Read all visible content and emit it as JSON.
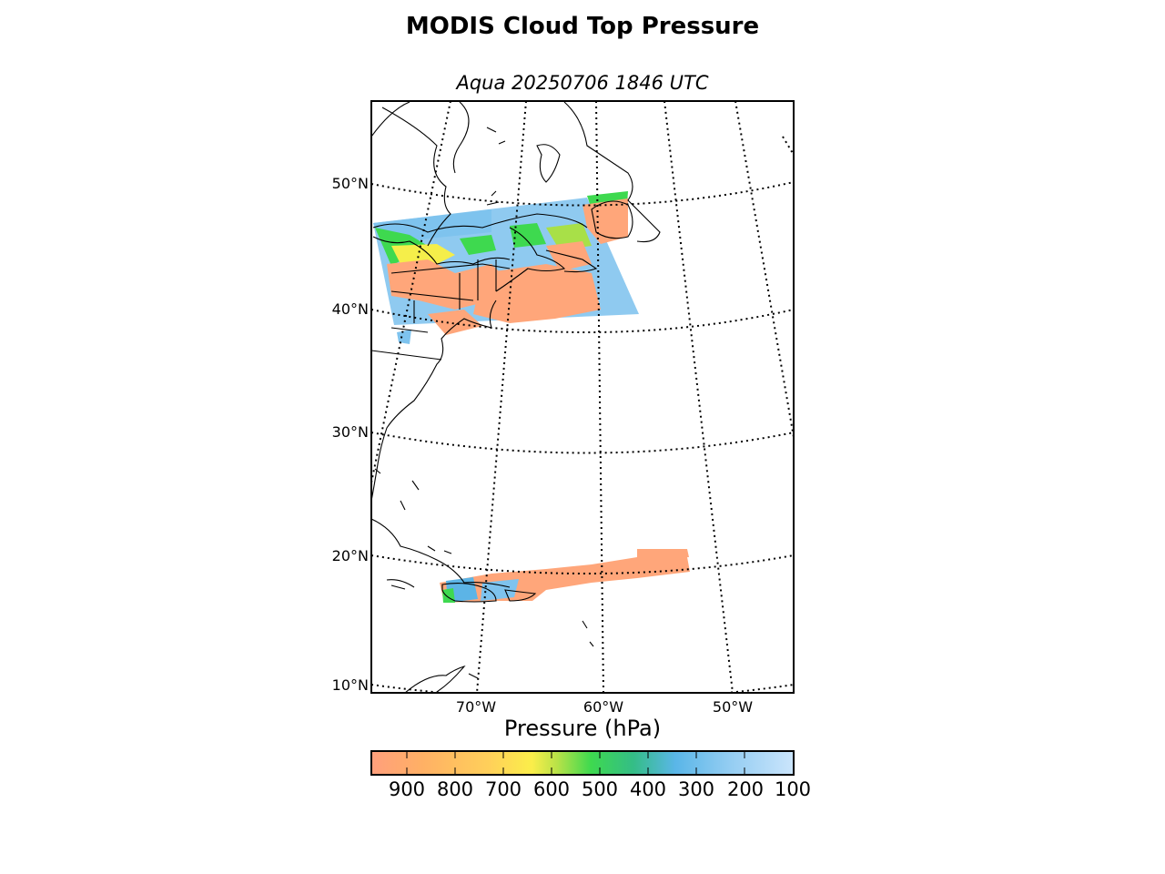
{
  "title": "MODIS Cloud Top Pressure",
  "subtitle": "Aqua 20250706 1846 UTC",
  "map": {
    "lat_labels": [
      "50°N",
      "40°N",
      "30°N",
      "20°N",
      "10°N"
    ],
    "lon_labels": [
      "70°W",
      "60°W",
      "50°W"
    ],
    "grid_style": "dotted",
    "coastline_color": "#000000"
  },
  "colorbar": {
    "label": "Pressure (hPa)",
    "ticks": [
      "900",
      "800",
      "700",
      "600",
      "500",
      "400",
      "300",
      "200",
      "100"
    ],
    "colors": [
      "#ff9f7c",
      "#ffb065",
      "#ffc75b",
      "#ffe454",
      "#f5f047",
      "#9fe048",
      "#3ed94f",
      "#2fc26b",
      "#44b0d3",
      "#5cb4e6",
      "#85c7f0",
      "#abd6f5",
      "#c9e4fb"
    ]
  },
  "legend_colors": {
    "low_cloud": "#ffa67a",
    "mid_cloud": "#3ed94f",
    "high_cloud": "#88c8ee"
  }
}
